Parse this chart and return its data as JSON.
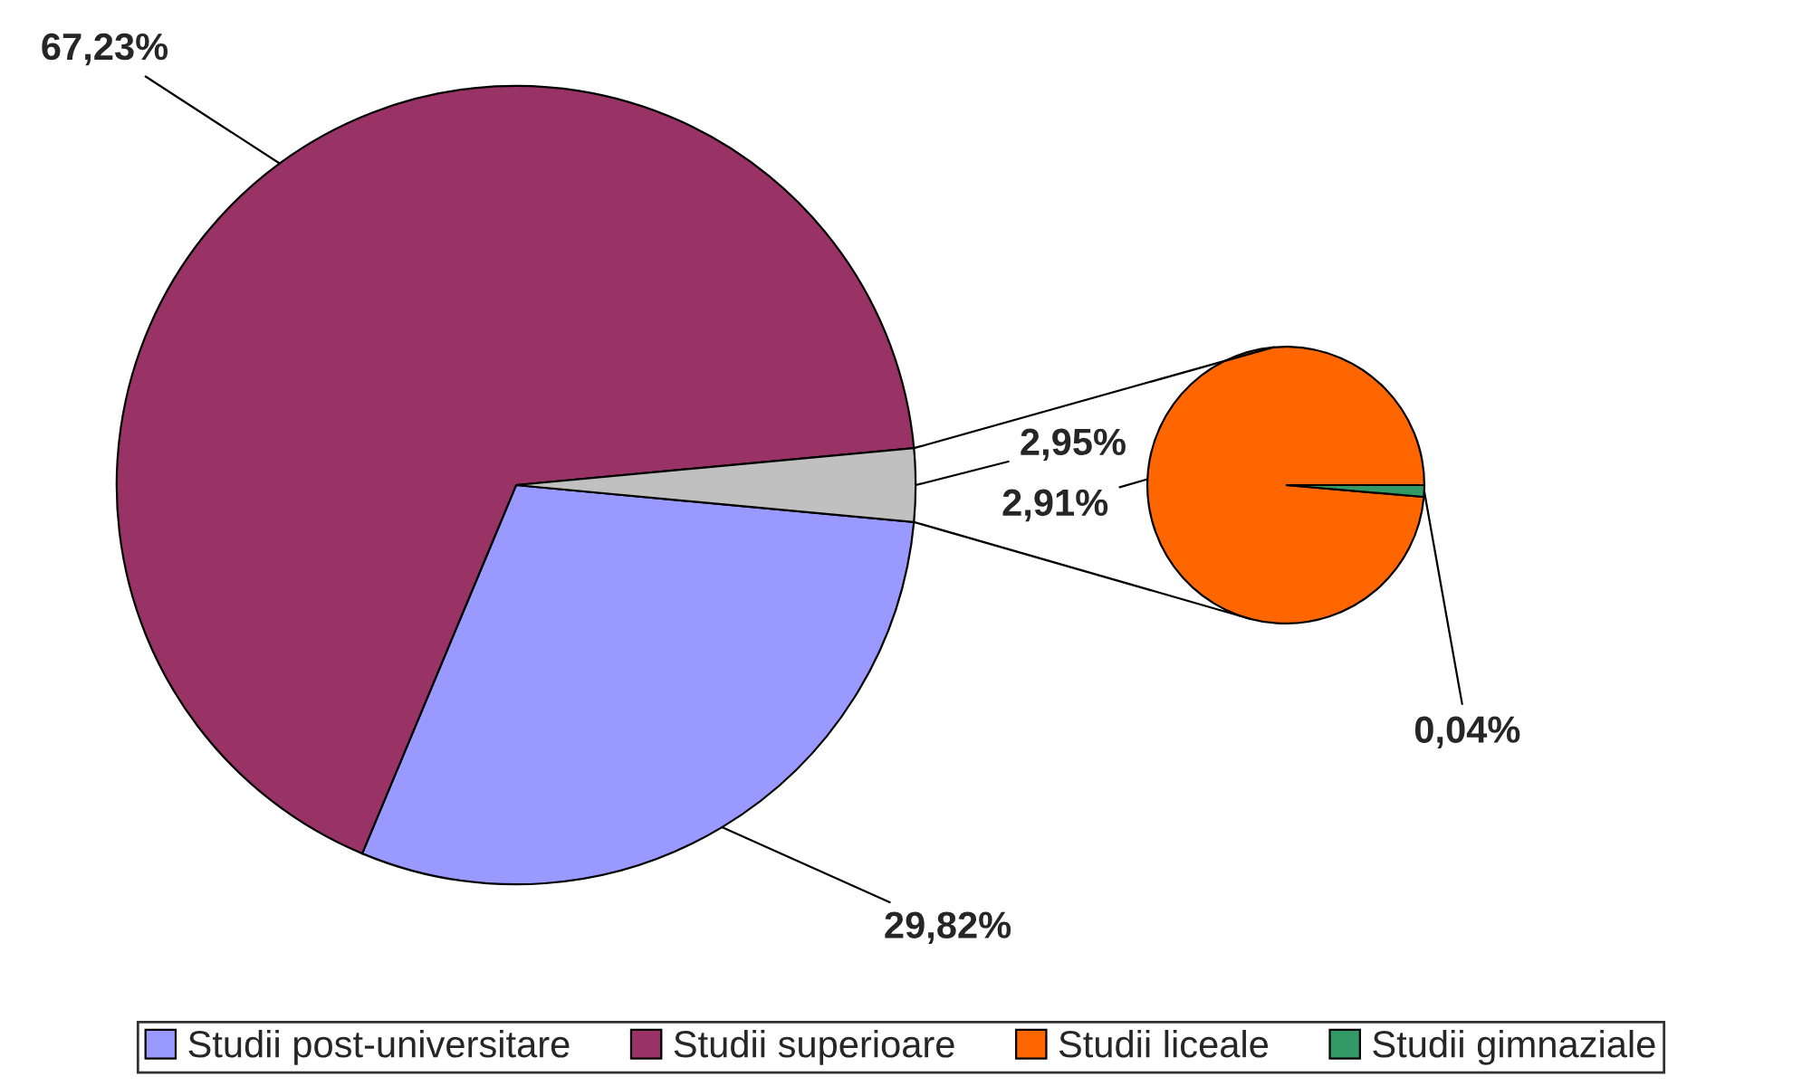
{
  "chart_data": [
    {
      "type": "pie",
      "categories": [
        "Studii post-universitare",
        "Studii superioare",
        null
      ],
      "values": [
        29.82,
        67.23,
        2.95
      ],
      "colors": [
        "#9999ff",
        "#993366",
        "#c0c0c0"
      ],
      "value_labels": [
        "29,82%",
        "67,23%",
        "2,95%"
      ],
      "legend": "bottom"
    },
    {
      "type": "pie",
      "categories": [
        "Studii liceale",
        "Studii gimnaziale"
      ],
      "values": [
        2.91,
        0.04
      ],
      "colors": [
        "#ff6600",
        "#339966"
      ],
      "value_labels": [
        "2,91%",
        "0,04%"
      ],
      "legend": "bottom"
    }
  ]
}
